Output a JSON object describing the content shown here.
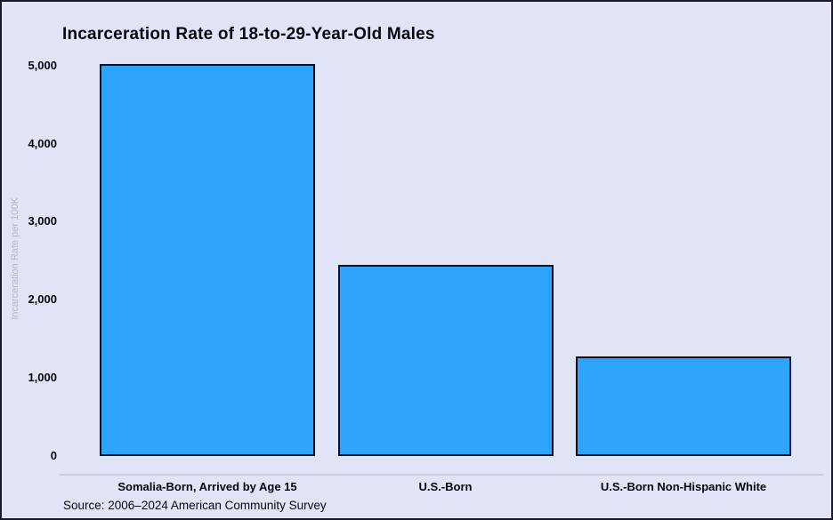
{
  "chart_data": {
    "type": "bar",
    "title": "Incarceration Rate of 18-to-29-Year-Old Males",
    "xlabel": "",
    "ylabel": "Incarceration Rate per 100K",
    "categories": [
      "Somalia-Born, Arrived by Age 15",
      "U.S.-Born",
      "U.S.-Born Non-Hispanic White"
    ],
    "values": [
      5030,
      2450,
      1280
    ],
    "ylim": [
      0,
      5000
    ],
    "yticks": [
      0,
      1000,
      2000,
      3000,
      4000,
      5000
    ],
    "ytick_labels": [
      "0",
      "1,000",
      "2,000",
      "3,000",
      "4,000",
      "5,000"
    ],
    "grid": false,
    "legend": false,
    "source_note": "Source: 2006–2024 American Community Survey",
    "colors": {
      "background": "#e1e4f6",
      "bar_fill": "#2ea3fa",
      "bar_border": "#0d0d18",
      "text": "#06060e",
      "ylabel_text": "#b3b6c6",
      "axis_line": "#c9ccda"
    }
  }
}
